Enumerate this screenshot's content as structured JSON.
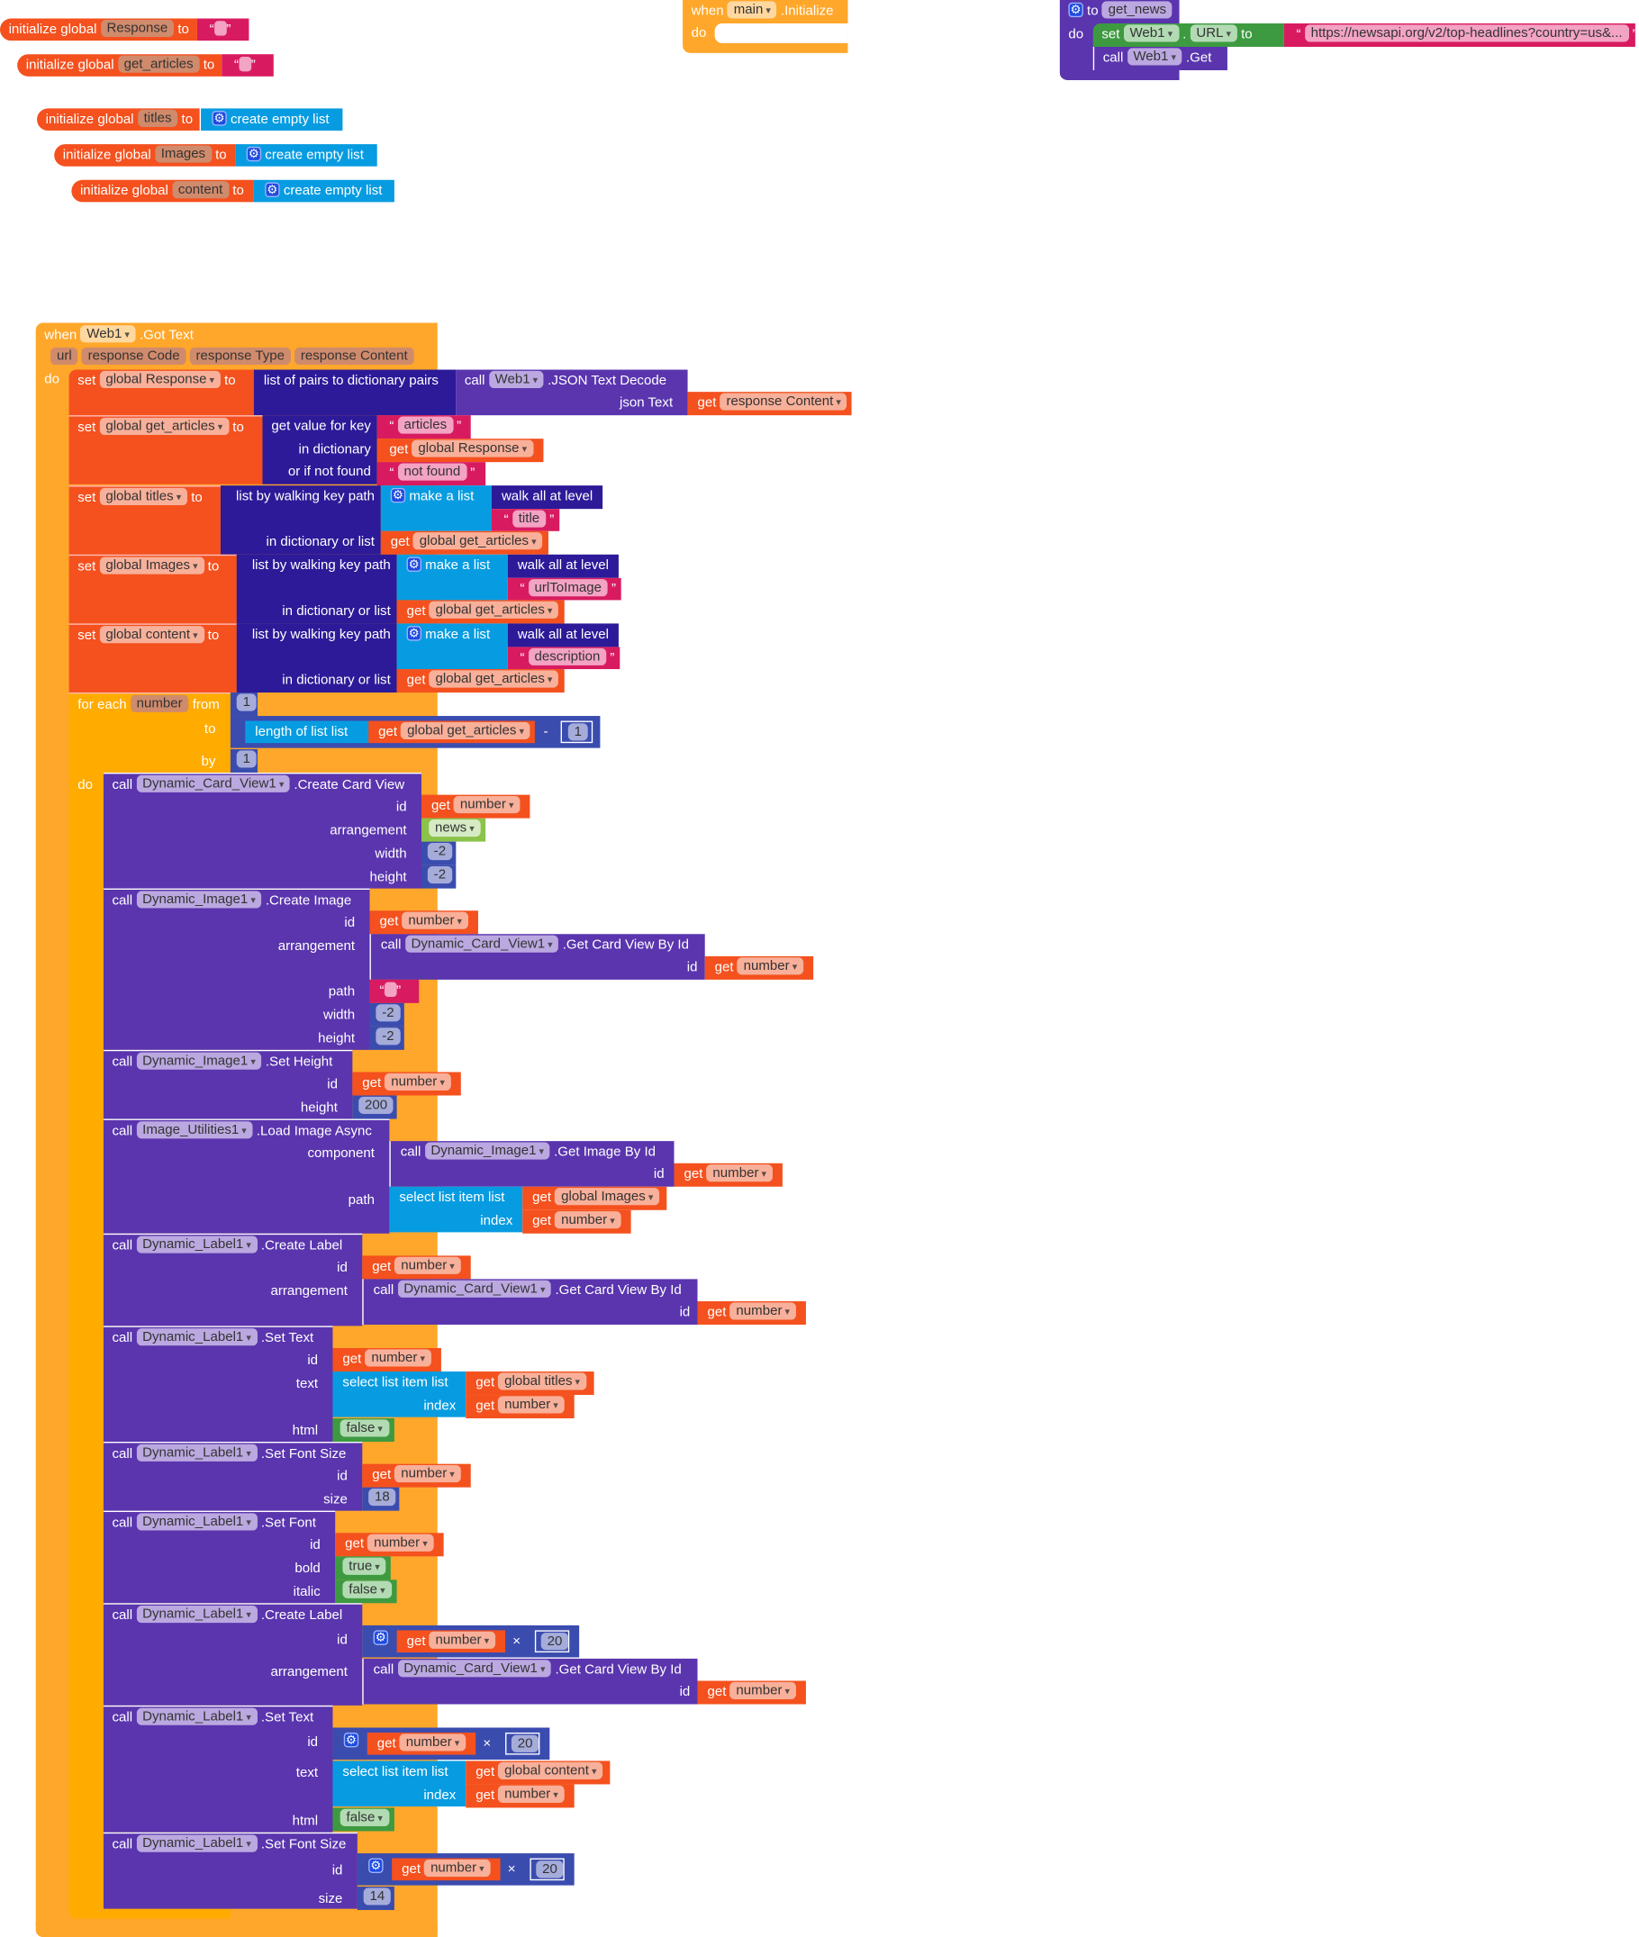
{
  "globals": [
    {
      "prefix": "initialize global",
      "name": "Response",
      "to": "to",
      "value_type": "empty-text"
    },
    {
      "prefix": "initialize global",
      "name": "get_articles",
      "to": "to",
      "value_type": "empty-text"
    },
    {
      "prefix": "initialize global",
      "name": "titles",
      "to": "to",
      "value": "create empty list"
    },
    {
      "prefix": "initialize global",
      "name": "Images",
      "to": "to",
      "value": "create empty list"
    },
    {
      "prefix": "initialize global",
      "name": "content",
      "to": "to",
      "value": "create empty list"
    }
  ],
  "main_init": {
    "when": "when",
    "component": "main",
    "event": ".Initialize",
    "do": "do"
  },
  "get_news": {
    "to": "to",
    "name": "get_news",
    "do": "do",
    "set": "set",
    "component": "Web1",
    "dot": ".",
    "property": "URL",
    "to2": "to",
    "url": "https://newsapi.org/v2/top-headlines?country=us&...",
    "call": "call",
    "call_component": "Web1",
    "method": ".Get"
  },
  "got_text": {
    "when": "when",
    "component": "Web1",
    "event": ".Got Text",
    "params": [
      "url",
      "response Code",
      "response Type",
      "response Content"
    ],
    "do": "do",
    "set_response": {
      "set": "set",
      "var": "global Response",
      "to": "to",
      "fn": "list of pairs to dictionary  pairs",
      "call": "call",
      "component": "Web1",
      "method": ".JSON Text Decode",
      "arg_label": "json Text",
      "get": "get",
      "get_var": "response Content"
    },
    "set_articles": {
      "set": "set",
      "var": "global get_articles",
      "to": "to",
      "fn": "get value for key",
      "key": "articles",
      "in_label": "in dictionary",
      "get": "get",
      "dict_var": "global Response",
      "notfound_label": "or if not found",
      "notfound": "not found"
    },
    "walks": [
      {
        "set": "set",
        "var": "global titles",
        "to": "to",
        "fn": "list by walking key path",
        "make": "make a list",
        "walk": "walk all at level",
        "key": "title",
        "in_label": "in dictionary or list",
        "get": "get",
        "src": "global get_articles"
      },
      {
        "set": "set",
        "var": "global Images",
        "to": "to",
        "fn": "list by walking key path",
        "make": "make a list",
        "walk": "walk all at level",
        "key": "urlToImage",
        "in_label": "in dictionary or list",
        "get": "get",
        "src": "global get_articles"
      },
      {
        "set": "set",
        "var": "global content",
        "to": "to",
        "fn": "list by walking key path",
        "make": "make a list",
        "walk": "walk all at level",
        "key": "description",
        "in_label": "in dictionary or list",
        "get": "get",
        "src": "global get_articles"
      }
    ],
    "loop": {
      "for_each": "for each",
      "var": "number",
      "from": "from",
      "from_val": "1",
      "to": "to",
      "length_label": "length of list  list",
      "get": "get",
      "list_var": "global get_articles",
      "minus": "-",
      "minus_val": "1",
      "by": "by",
      "by_val": "1",
      "do": "do"
    }
  },
  "calls": {
    "call": "call",
    "get": "get",
    "num": "number",
    "create_card": {
      "component": "Dynamic_Card_View1",
      "method": ".Create Card View",
      "id": "id",
      "arrangement": "arrangement",
      "arr_val": "news",
      "width": "width",
      "width_val": "-2",
      "height": "height",
      "height_val": "-2"
    },
    "create_image": {
      "component": "Dynamic_Image1",
      "method": ".Create Image",
      "id": "id",
      "arrangement": "arrangement",
      "card_component": "Dynamic_Card_View1",
      "card_method": ".Get Card View By Id",
      "inner_id": "id",
      "path": "path",
      "width": "width",
      "width_val": "-2",
      "height": "height",
      "height_val": "-2"
    },
    "set_height": {
      "component": "Dynamic_Image1",
      "method": ".Set Height",
      "id": "id",
      "height": "height",
      "height_val": "200"
    },
    "load_image": {
      "component": "Image_Utilities1",
      "method": ".Load Image Async",
      "component_label": "component",
      "img_component": "Dynamic_Image1",
      "img_method": ".Get Image By Id",
      "inner_id": "id",
      "path": "path",
      "select": "select list item  list",
      "list_var": "global Images",
      "index": "index"
    },
    "create_label1": {
      "component": "Dynamic_Label1",
      "method": ".Create Label",
      "id": "id",
      "arrangement": "arrangement",
      "card_component": "Dynamic_Card_View1",
      "card_method": ".Get Card View By Id",
      "inner_id": "id"
    },
    "set_text1": {
      "component": "Dynamic_Label1",
      "method": ".Set Text",
      "id": "id",
      "text": "text",
      "select": "select list item  list",
      "list_var": "global titles",
      "index": "index",
      "html": "html",
      "html_val": "false"
    },
    "set_font_size1": {
      "component": "Dynamic_Label1",
      "method": ".Set Font Size",
      "id": "id",
      "size": "size",
      "size_val": "18"
    },
    "set_font": {
      "component": "Dynamic_Label1",
      "method": ".Set Font",
      "id": "id",
      "bold": "bold",
      "bold_val": "true",
      "italic": "italic",
      "italic_val": "false"
    },
    "create_label2": {
      "component": "Dynamic_Label1",
      "method": ".Create Label",
      "id": "id",
      "times": "×",
      "mult": "20",
      "arrangement": "arrangement",
      "card_component": "Dynamic_Card_View1",
      "card_method": ".Get Card View By Id",
      "inner_id": "id"
    },
    "set_text2": {
      "component": "Dynamic_Label1",
      "method": ".Set Text",
      "id": "id",
      "times": "×",
      "mult": "20",
      "text": "text",
      "select": "select list item  list",
      "list_var": "global content",
      "index": "index",
      "html": "html",
      "html_val": "false"
    },
    "set_font_size2": {
      "component": "Dynamic_Label1",
      "method": ".Set Font Size",
      "id": "id",
      "times": "×",
      "mult": "20",
      "size": "size",
      "size_val": "14"
    }
  },
  "colors": {
    "variables": "#f4511e",
    "text": "#d81b60",
    "lists": "#079ce1",
    "events": "#ffa72a",
    "components": "#5a35ae",
    "dictionaries": "#2c1a98",
    "math": "#3b4caf",
    "logic": "#3d9a40"
  }
}
